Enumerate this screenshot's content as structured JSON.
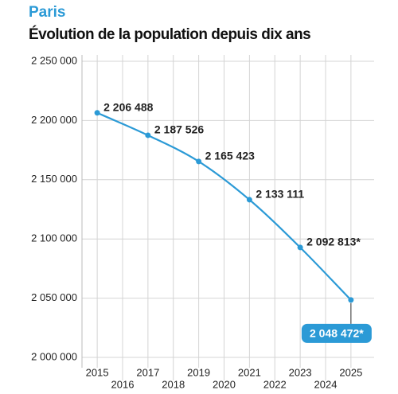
{
  "chart_data": {
    "type": "line",
    "title": "Paris",
    "subtitle": "Évolution de la population depuis dix ans",
    "x": [
      2015,
      2017,
      2019,
      2021,
      2023,
      2025
    ],
    "values": [
      2206488,
      2187526,
      2165423,
      2133111,
      2092813,
      2048472
    ],
    "value_labels": [
      "2 206 488",
      "2 187 526",
      "2 165 423",
      "2 133 111",
      "2 092 813*",
      "2 048 472*"
    ],
    "color": "#2b9ad6",
    "xlim": [
      2014.4,
      2025.6
    ],
    "xticks": [
      2015,
      2016,
      2017,
      2018,
      2019,
      2020,
      2021,
      2022,
      2023,
      2024,
      2025
    ],
    "ylim": [
      2000000,
      2250000
    ],
    "yticks": [
      {
        "value": 2000000,
        "label": "2 000 000"
      },
      {
        "value": 2050000,
        "label": "2 050 000"
      },
      {
        "value": 2100000,
        "label": "2 100 000"
      },
      {
        "value": 2150000,
        "label": "2 150 000"
      },
      {
        "value": 2200000,
        "label": "2 200 000"
      },
      {
        "value": 2250000,
        "label": "2 250 000"
      }
    ],
    "grid": true
  }
}
